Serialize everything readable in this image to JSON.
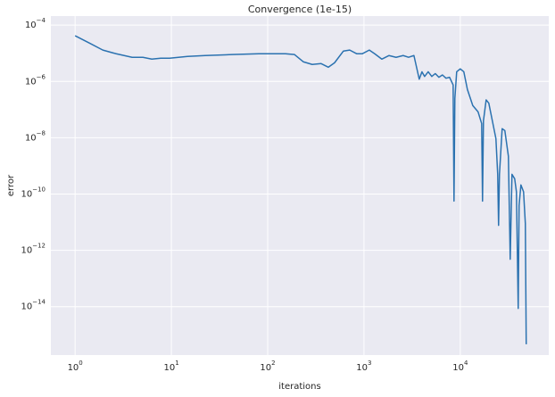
{
  "chart_data": {
    "type": "line",
    "title": "Convergence (1e-15)",
    "x_label": "iterations",
    "y_label": "error",
    "x_log": true,
    "y_log": true,
    "grid": true,
    "xlim": [
      0.56,
      83000
    ],
    "ylim": [
      1.9e-16,
      0.00021
    ],
    "xticks": [
      {
        "value": 1,
        "label": "100"
      },
      {
        "value": 10,
        "label": "101"
      },
      {
        "value": 100,
        "label": "102"
      },
      {
        "value": 1000,
        "label": "103"
      },
      {
        "value": 10000,
        "label": "104"
      }
    ],
    "yticks": [
      {
        "value": 1e-14,
        "label": "10−14"
      },
      {
        "value": 1e-12,
        "label": "10−12"
      },
      {
        "value": 1e-10,
        "label": "10−10"
      },
      {
        "value": 1e-08,
        "label": "10−8"
      },
      {
        "value": 1e-06,
        "label": "10−6"
      },
      {
        "value": 0.0001,
        "label": "10−4"
      }
    ],
    "x": [
      1,
      1.41,
      1.94,
      2.67,
      3.91,
      5.06,
      6.26,
      7.74,
      9.58,
      14.7,
      22.5,
      42.7,
      80.8,
      153,
      190,
      234,
      290,
      359,
      426,
      495,
      612,
      711,
      843,
      958,
      1136,
      1292,
      1531,
      1815,
      2154,
      2553,
      2904,
      3302,
      3750,
      4000,
      4265,
      4645,
      5058,
      5508,
      5998,
      6531,
      7112,
      7745,
      8433,
      8610,
      8790,
      9180,
      10000,
      10890,
      11860,
      13480,
      15310,
      16680,
      17030,
      17410,
      18570,
      19780,
      21540,
      23460,
      24480,
      25000,
      25530,
      27230,
      29040,
      31620,
      33020,
      34440,
      36740,
      38310,
      39980,
      40830,
      42650,
      45440,
      47420,
      48430
    ],
    "series": [
      {
        "name": "error",
        "color": "#2b72b0",
        "values": [
          4.2e-05,
          2.3e-05,
          1.3e-05,
          9.6e-06,
          7.2e-06,
          7.2e-06,
          6.2e-06,
          6.7e-06,
          6.7e-06,
          7.7e-06,
          8.3e-06,
          9e-06,
          9.6e-06,
          9.6e-06,
          9e-06,
          5e-06,
          4e-06,
          4.3e-06,
          3.2e-06,
          4.6e-06,
          1.2e-05,
          1.3e-05,
          9.6e-06,
          9.6e-06,
          1.3e-05,
          9.6e-06,
          6.2e-06,
          8.3e-06,
          7.2e-06,
          8.3e-06,
          7.2e-06,
          8.3e-06,
          1.2e-06,
          2.2e-06,
          1.5e-06,
          2.2e-06,
          1.5e-06,
          1.9e-06,
          1.4e-06,
          1.7e-06,
          1.3e-06,
          1.4e-06,
          7.5e-07,
          5.6e-11,
          2.5e-07,
          2.2e-06,
          2.8e-06,
          2.2e-06,
          5.2e-07,
          1.4e-07,
          8.3e-08,
          3.2e-08,
          5.6e-11,
          4e-08,
          2.2e-07,
          1.7e-07,
          4e-08,
          9.3e-09,
          5e-10,
          7.7e-12,
          5e-10,
          2.1e-08,
          1.8e-08,
          2.2e-09,
          4.8e-13,
          5e-10,
          3.5e-10,
          1.2e-10,
          8.6e-15,
          3.9e-11,
          2.1e-10,
          1.2e-10,
          9e-12,
          4.6e-16
        ]
      }
    ]
  }
}
